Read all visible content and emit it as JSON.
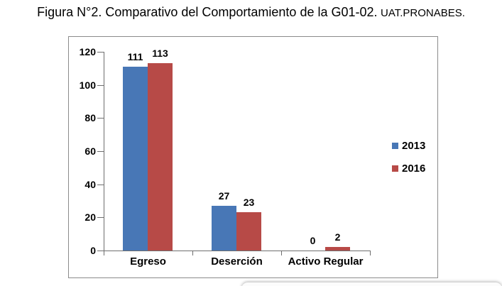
{
  "title": {
    "main": "Figura N°2. Comparativo del Comportamiento de la G01-02.",
    "suffix": "UAT.PRONABES."
  },
  "chart_data": {
    "type": "bar",
    "title": "Figura N°2. Comparativo del Comportamiento de la G01-02. UAT.PRONABES.",
    "categories": [
      "Egreso",
      "Deserción",
      "Activo Regular"
    ],
    "series": [
      {
        "name": "2013",
        "color": "#4877B6",
        "values": [
          111,
          27,
          0
        ]
      },
      {
        "name": "2016",
        "color": "#B74A47",
        "values": [
          113,
          23,
          2
        ]
      }
    ],
    "ylim": [
      0,
      120
    ],
    "yticks": [
      0,
      20,
      40,
      60,
      80,
      100,
      120
    ],
    "grid": false,
    "data_labels": true,
    "legend_position": "right",
    "axis_color": "#6e6e6e",
    "frame_border_color": "#8b8b8b"
  }
}
